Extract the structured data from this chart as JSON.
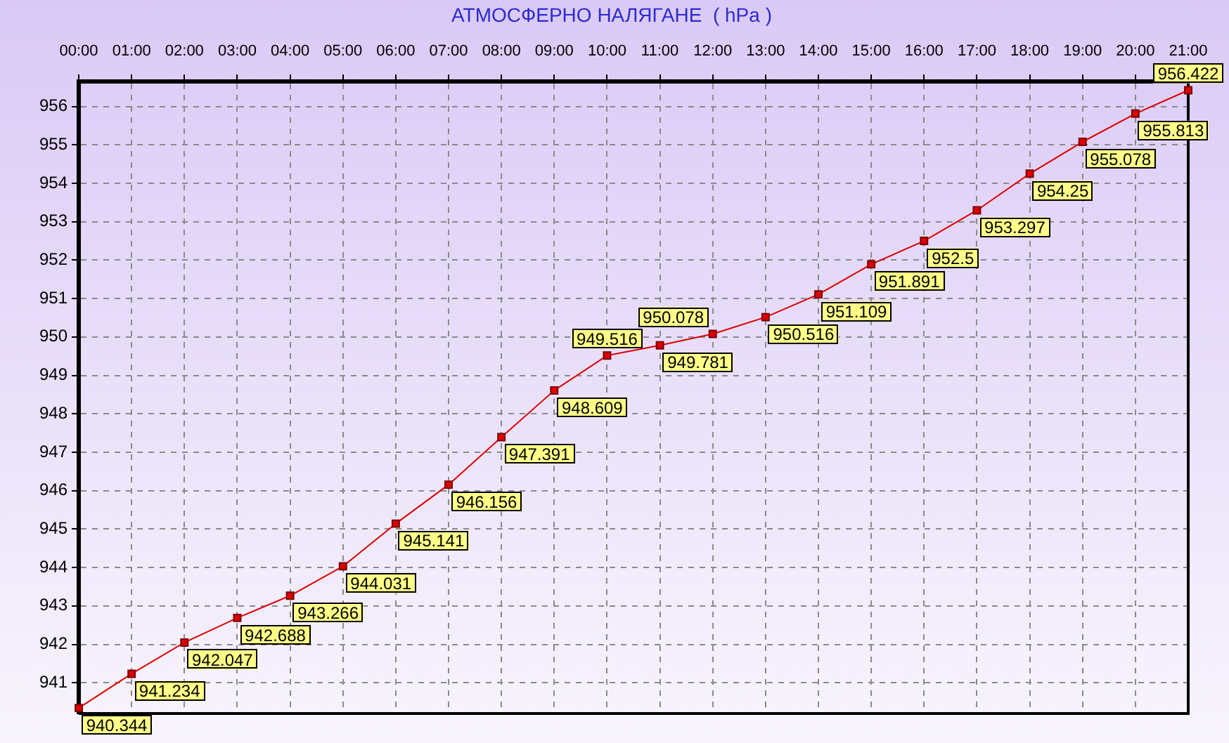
{
  "chart_data": {
    "type": "line",
    "title": "АТМОСФЕРНО НАЛЯГАНЕ  ( hPa )",
    "categories": [
      "00:00",
      "01:00",
      "02:00",
      "03:00",
      "04:00",
      "05:00",
      "06:00",
      "07:00",
      "08:00",
      "09:00",
      "10:00",
      "11:00",
      "12:00",
      "13:00",
      "14:00",
      "15:00",
      "16:00",
      "17:00",
      "18:00",
      "19:00",
      "20:00",
      "21:00"
    ],
    "values": [
      940.344,
      941.234,
      942.047,
      942.688,
      943.266,
      944.031,
      945.141,
      946.156,
      947.391,
      948.609,
      949.516,
      949.781,
      950.078,
      950.516,
      951.109,
      951.891,
      952.5,
      953.297,
      954.25,
      955.078,
      955.813,
      956.422
    ],
    "color": "#dd0000",
    "ylim": [
      940.2,
      956.65
    ],
    "yticks": [
      941,
      942,
      943,
      944,
      945,
      946,
      947,
      948,
      949,
      950,
      951,
      952,
      953,
      954,
      955,
      956
    ],
    "grid": true,
    "marker": "square",
    "data_labels": true
  }
}
